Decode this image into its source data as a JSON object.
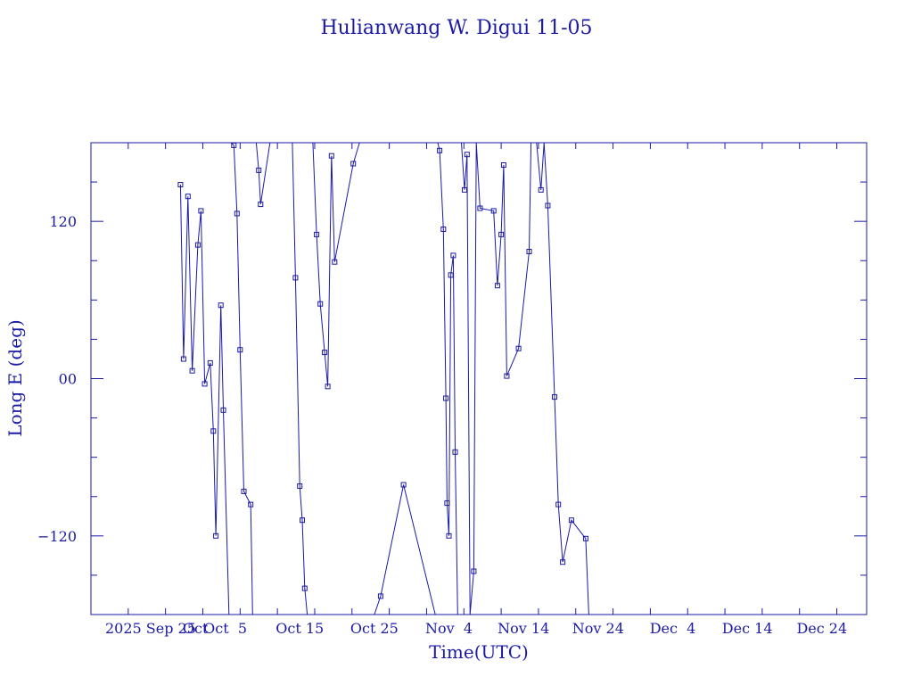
{
  "chart_data": {
    "type": "line",
    "title": "Hulianwang W. Digui 11-05",
    "xlabel": "Time(UTC)",
    "ylabel": "Long E (deg)",
    "xlim": [
      "2025-09-17",
      "2025-12-30"
    ],
    "ylim": [
      -180,
      180
    ],
    "x_ticks": [
      {
        "date": "2025-09-25",
        "label": "2025 Sep 25"
      },
      {
        "date": "2025-10-05",
        "label": "Oct  5"
      },
      {
        "date": "2025-10-15",
        "label": "Oct 15"
      },
      {
        "date": "2025-10-25",
        "label": "Oct 25"
      },
      {
        "date": "2025-11-04",
        "label": "Nov  4"
      },
      {
        "date": "2025-11-14",
        "label": "Nov 14"
      },
      {
        "date": "2025-11-24",
        "label": "Nov 24"
      },
      {
        "date": "2025-12-04",
        "label": "Dec  4"
      },
      {
        "date": "2025-12-14",
        "label": "Dec 14"
      },
      {
        "date": "2025-12-24",
        "label": "Dec 24"
      }
    ],
    "x_ticks_extra": [
      {
        "date": "2025-10-01",
        "label": "Oct"
      }
    ],
    "y_ticks": [
      {
        "value": -120,
        "label": "−120"
      },
      {
        "value": 0,
        "label": "00"
      },
      {
        "value": 120,
        "label": "120"
      }
    ],
    "grid": false,
    "series": [
      {
        "color": "#1a1aa6",
        "points": [
          [
            "2025-09-29T00:00",
            148
          ],
          [
            "2025-09-29T10:00",
            15
          ],
          [
            "2025-09-30T00:00",
            139
          ],
          [
            "2025-09-30T14:00",
            6
          ],
          [
            "2025-10-01T08:00",
            102
          ],
          [
            "2025-10-01T18:00",
            128
          ],
          [
            "2025-10-02T06:00",
            -4
          ],
          [
            "2025-10-03T00:00",
            12
          ],
          [
            "2025-10-03T10:00",
            -40
          ],
          [
            "2025-10-03T18:00",
            -120
          ],
          [
            "2025-10-04T10:00",
            56
          ],
          [
            "2025-10-04T18:00",
            -24
          ],
          [
            "2025-10-05T12:00",
            -180
          ],
          [
            "2025-10-05T18:00",
            180
          ],
          [
            "2025-10-06T04:00",
            178
          ],
          [
            "2025-10-06T14:00",
            126
          ],
          [
            "2025-10-07T00:00",
            22
          ],
          [
            "2025-10-07T12:00",
            -86
          ],
          [
            "2025-10-08T10:00",
            -96
          ],
          [
            "2025-10-08T16:00",
            -180
          ],
          [
            "2025-10-09T04:00",
            180
          ],
          [
            "2025-10-09T12:00",
            159
          ],
          [
            "2025-10-09T18:00",
            133
          ],
          [
            "2025-10-11T00:00",
            180
          ],
          [
            "2025-10-14T00:00",
            180
          ],
          [
            "2025-10-14T10:00",
            77
          ],
          [
            "2025-10-15T00:00",
            -82
          ],
          [
            "2025-10-15T08:00",
            -108
          ],
          [
            "2025-10-15T16:00",
            -160
          ],
          [
            "2025-10-16T00:00",
            -180
          ],
          [
            "2025-10-16T18:00",
            180
          ],
          [
            "2025-10-17T06:00",
            110
          ],
          [
            "2025-10-17T18:00",
            57
          ],
          [
            "2025-10-18T08:00",
            20
          ],
          [
            "2025-10-18T18:00",
            -6
          ],
          [
            "2025-10-19T06:00",
            170
          ],
          [
            "2025-10-19T16:00",
            89
          ],
          [
            "2025-10-22T04:00",
            164
          ],
          [
            "2025-10-23T00:00",
            180
          ],
          [
            "2025-10-25T00:00",
            -180
          ],
          [
            "2025-10-25T20:00",
            -166
          ],
          [
            "2025-10-28T22:00",
            -81
          ],
          [
            "2025-11-02T04:00",
            -180
          ],
          [
            "2025-11-02T12:00",
            180
          ],
          [
            "2025-11-02T18:00",
            174
          ],
          [
            "2025-11-03T06:00",
            114
          ],
          [
            "2025-11-03T14:00",
            -15
          ],
          [
            "2025-11-03T18:00",
            -95
          ],
          [
            "2025-11-04T00:00",
            -120
          ],
          [
            "2025-11-04T06:00",
            79
          ],
          [
            "2025-11-04T14:00",
            94
          ],
          [
            "2025-11-04T20:00",
            -56
          ],
          [
            "2025-11-05T04:00",
            -180
          ],
          [
            "2025-11-05T16:00",
            180
          ],
          [
            "2025-11-06T02:00",
            144
          ],
          [
            "2025-11-06T10:00",
            171
          ],
          [
            "2025-11-06T20:00",
            -180
          ],
          [
            "2025-11-07T08:00",
            -147
          ],
          [
            "2025-11-07T16:00",
            180
          ],
          [
            "2025-11-08T04:00",
            130
          ],
          [
            "2025-11-10T00:00",
            128
          ],
          [
            "2025-11-10T12:00",
            71
          ],
          [
            "2025-11-11T00:00",
            110
          ],
          [
            "2025-11-11T08:00",
            163
          ],
          [
            "2025-11-11T18:00",
            2
          ],
          [
            "2025-11-13T08:00",
            23
          ],
          [
            "2025-11-14T18:00",
            97
          ],
          [
            "2025-11-15T00:00",
            180
          ],
          [
            "2025-11-15T18:00",
            180
          ],
          [
            "2025-11-16T08:00",
            144
          ],
          [
            "2025-11-16T18:00",
            180
          ],
          [
            "2025-11-17T06:00",
            132
          ],
          [
            "2025-11-18T04:00",
            -14
          ],
          [
            "2025-11-18T16:00",
            -96
          ],
          [
            "2025-11-19T06:00",
            -140
          ],
          [
            "2025-11-20T10:00",
            -108
          ],
          [
            "2025-11-22T08:00",
            -122
          ],
          [
            "2025-11-22T18:00",
            -180
          ]
        ]
      }
    ]
  }
}
